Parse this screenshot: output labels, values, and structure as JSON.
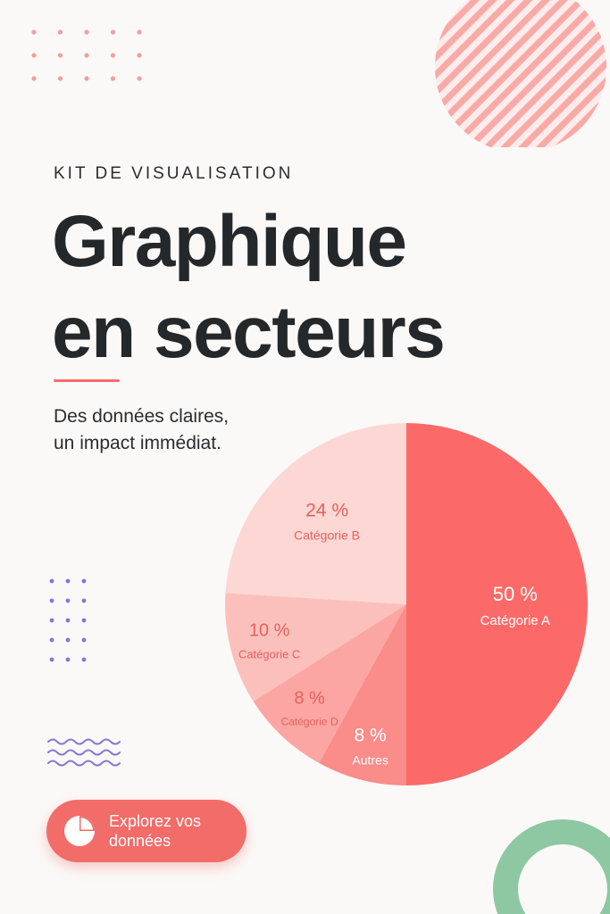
{
  "header": {
    "kicker": "KIT DE VISUALISATION",
    "title_line1": "Graphique",
    "title_line2": "en secteurs",
    "subtitle_line1": "Des données claires,",
    "subtitle_line2": "un impact immédiat."
  },
  "cta": {
    "label_line1": "Explorez vos",
    "label_line2": "données",
    "icon": "pie-chart-icon"
  },
  "colors": {
    "background": "#fbf9f7",
    "accent": "#f26c6a",
    "text": "#24282b",
    "dots_purple": "#8a74d6",
    "ring_green": "#8dc8a2"
  },
  "chart_data": {
    "type": "pie",
    "slices": [
      {
        "label": "Catégorie A",
        "value": 50,
        "display": "50 %",
        "color": "#fb6a68"
      },
      {
        "label": "Autres",
        "value": 8,
        "display": "8 %",
        "color": "#fa8c89"
      },
      {
        "label": "Catégorie D",
        "value": 8,
        "display": "8 %",
        "color": "#fba6a2"
      },
      {
        "label": "Catégorie C",
        "value": 10,
        "display": "10 %",
        "color": "#fcc0bc"
      },
      {
        "label": "Catégorie B",
        "value": 24,
        "display": "24 %",
        "color": "#fdd7d4"
      }
    ]
  }
}
